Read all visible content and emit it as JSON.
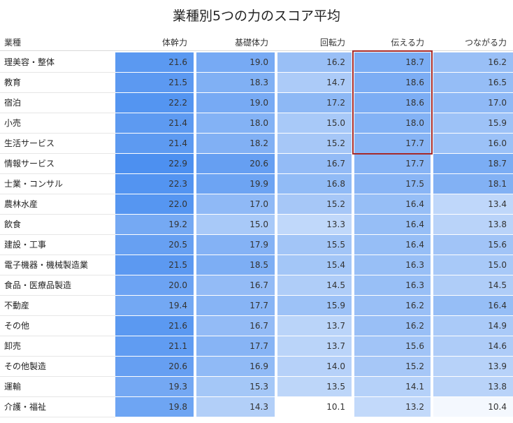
{
  "chart_data": {
    "type": "heatmap",
    "title": "業種別5つの力のスコア平均",
    "row_header": "業種",
    "columns": [
      "体幹力",
      "基礎体力",
      "回転力",
      "伝える力",
      "つながる力"
    ],
    "rows": [
      {
        "label": "理美容・整体",
        "values": [
          21.6,
          19.0,
          16.2,
          18.7,
          16.2
        ]
      },
      {
        "label": "教育",
        "values": [
          21.5,
          18.3,
          14.7,
          18.6,
          16.5
        ]
      },
      {
        "label": "宿泊",
        "values": [
          22.2,
          19.0,
          17.2,
          18.6,
          17.0
        ]
      },
      {
        "label": "小売",
        "values": [
          21.4,
          18.0,
          15.0,
          18.0,
          15.9
        ]
      },
      {
        "label": "生活サービス",
        "values": [
          21.4,
          18.2,
          15.2,
          17.7,
          16.0
        ]
      },
      {
        "label": "情報サービス",
        "values": [
          22.9,
          20.6,
          16.7,
          17.7,
          18.7
        ]
      },
      {
        "label": "士業・コンサル",
        "values": [
          22.3,
          19.9,
          16.8,
          17.5,
          18.1
        ]
      },
      {
        "label": "農林水産",
        "values": [
          22.0,
          17.0,
          15.2,
          16.4,
          13.4
        ]
      },
      {
        "label": "飲食",
        "values": [
          19.2,
          15.0,
          13.3,
          16.4,
          13.8
        ]
      },
      {
        "label": "建設・工事",
        "values": [
          20.5,
          17.9,
          15.5,
          16.4,
          15.6
        ]
      },
      {
        "label": "電子機器・機械製造業",
        "values": [
          21.5,
          18.5,
          15.4,
          16.3,
          15.0
        ]
      },
      {
        "label": "食品・医療品製造",
        "values": [
          20.0,
          16.7,
          14.5,
          16.3,
          14.5
        ]
      },
      {
        "label": "不動産",
        "values": [
          19.4,
          17.7,
          15.9,
          16.2,
          16.4
        ]
      },
      {
        "label": "その他",
        "values": [
          21.6,
          16.7,
          13.7,
          16.2,
          14.9
        ]
      },
      {
        "label": "卸売",
        "values": [
          21.1,
          17.7,
          13.7,
          15.6,
          14.6
        ]
      },
      {
        "label": "その他製造",
        "values": [
          20.6,
          16.9,
          14.0,
          15.2,
          13.9
        ]
      },
      {
        "label": "運輸",
        "values": [
          19.3,
          15.3,
          13.5,
          14.1,
          13.8
        ]
      },
      {
        "label": "介護・福祉",
        "values": [
          19.8,
          14.3,
          10.1,
          13.2,
          10.4
        ]
      }
    ],
    "color_scale": {
      "low": "#ffffff",
      "high": "#4d90f0"
    },
    "highlight": {
      "column": "伝える力",
      "rows": [
        "理美容・整体",
        "教育",
        "宿泊",
        "小売",
        "生活サービス"
      ],
      "color": "#a52a2a"
    }
  }
}
